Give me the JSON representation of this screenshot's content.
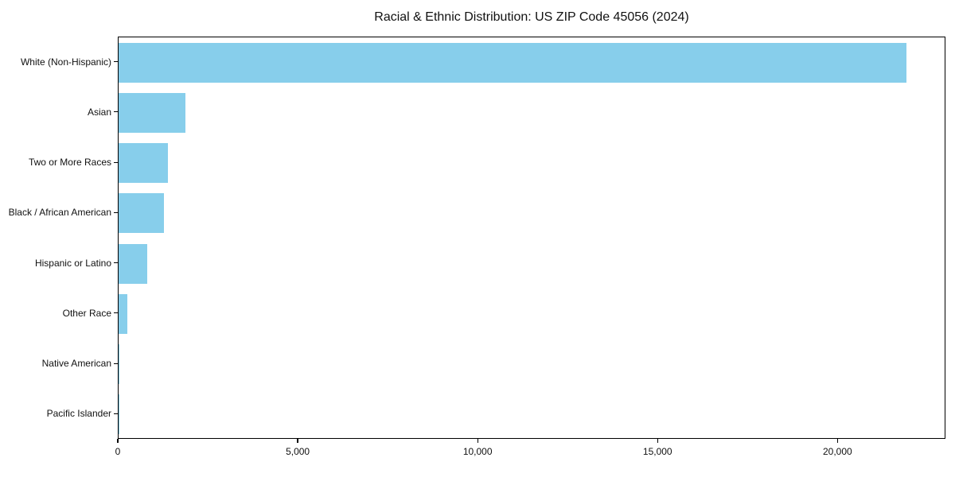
{
  "chart_data": {
    "type": "bar",
    "orientation": "horizontal",
    "title": "Racial & Ethnic Distribution: US ZIP Code 45056 (2024)",
    "categories": [
      "White (Non-Hispanic)",
      "Asian",
      "Two or More Races",
      "Black / African American",
      "Hispanic or Latino",
      "Other Race",
      "Native American",
      "Pacific Islander"
    ],
    "values": [
      21900,
      1850,
      1370,
      1260,
      800,
      245,
      25,
      5
    ],
    "xlabel": "",
    "ylabel": "",
    "xlim": [
      0,
      23000
    ],
    "x_ticks": [
      {
        "value": 0,
        "label": "0"
      },
      {
        "value": 5000,
        "label": "5,000"
      },
      {
        "value": 10000,
        "label": "10,000"
      },
      {
        "value": 15000,
        "label": "15,000"
      },
      {
        "value": 20000,
        "label": "20,000"
      }
    ],
    "bar_color": "#87CEEB",
    "spine_color": "#000000",
    "text_color": "#111111",
    "grid": false,
    "legend": null
  }
}
